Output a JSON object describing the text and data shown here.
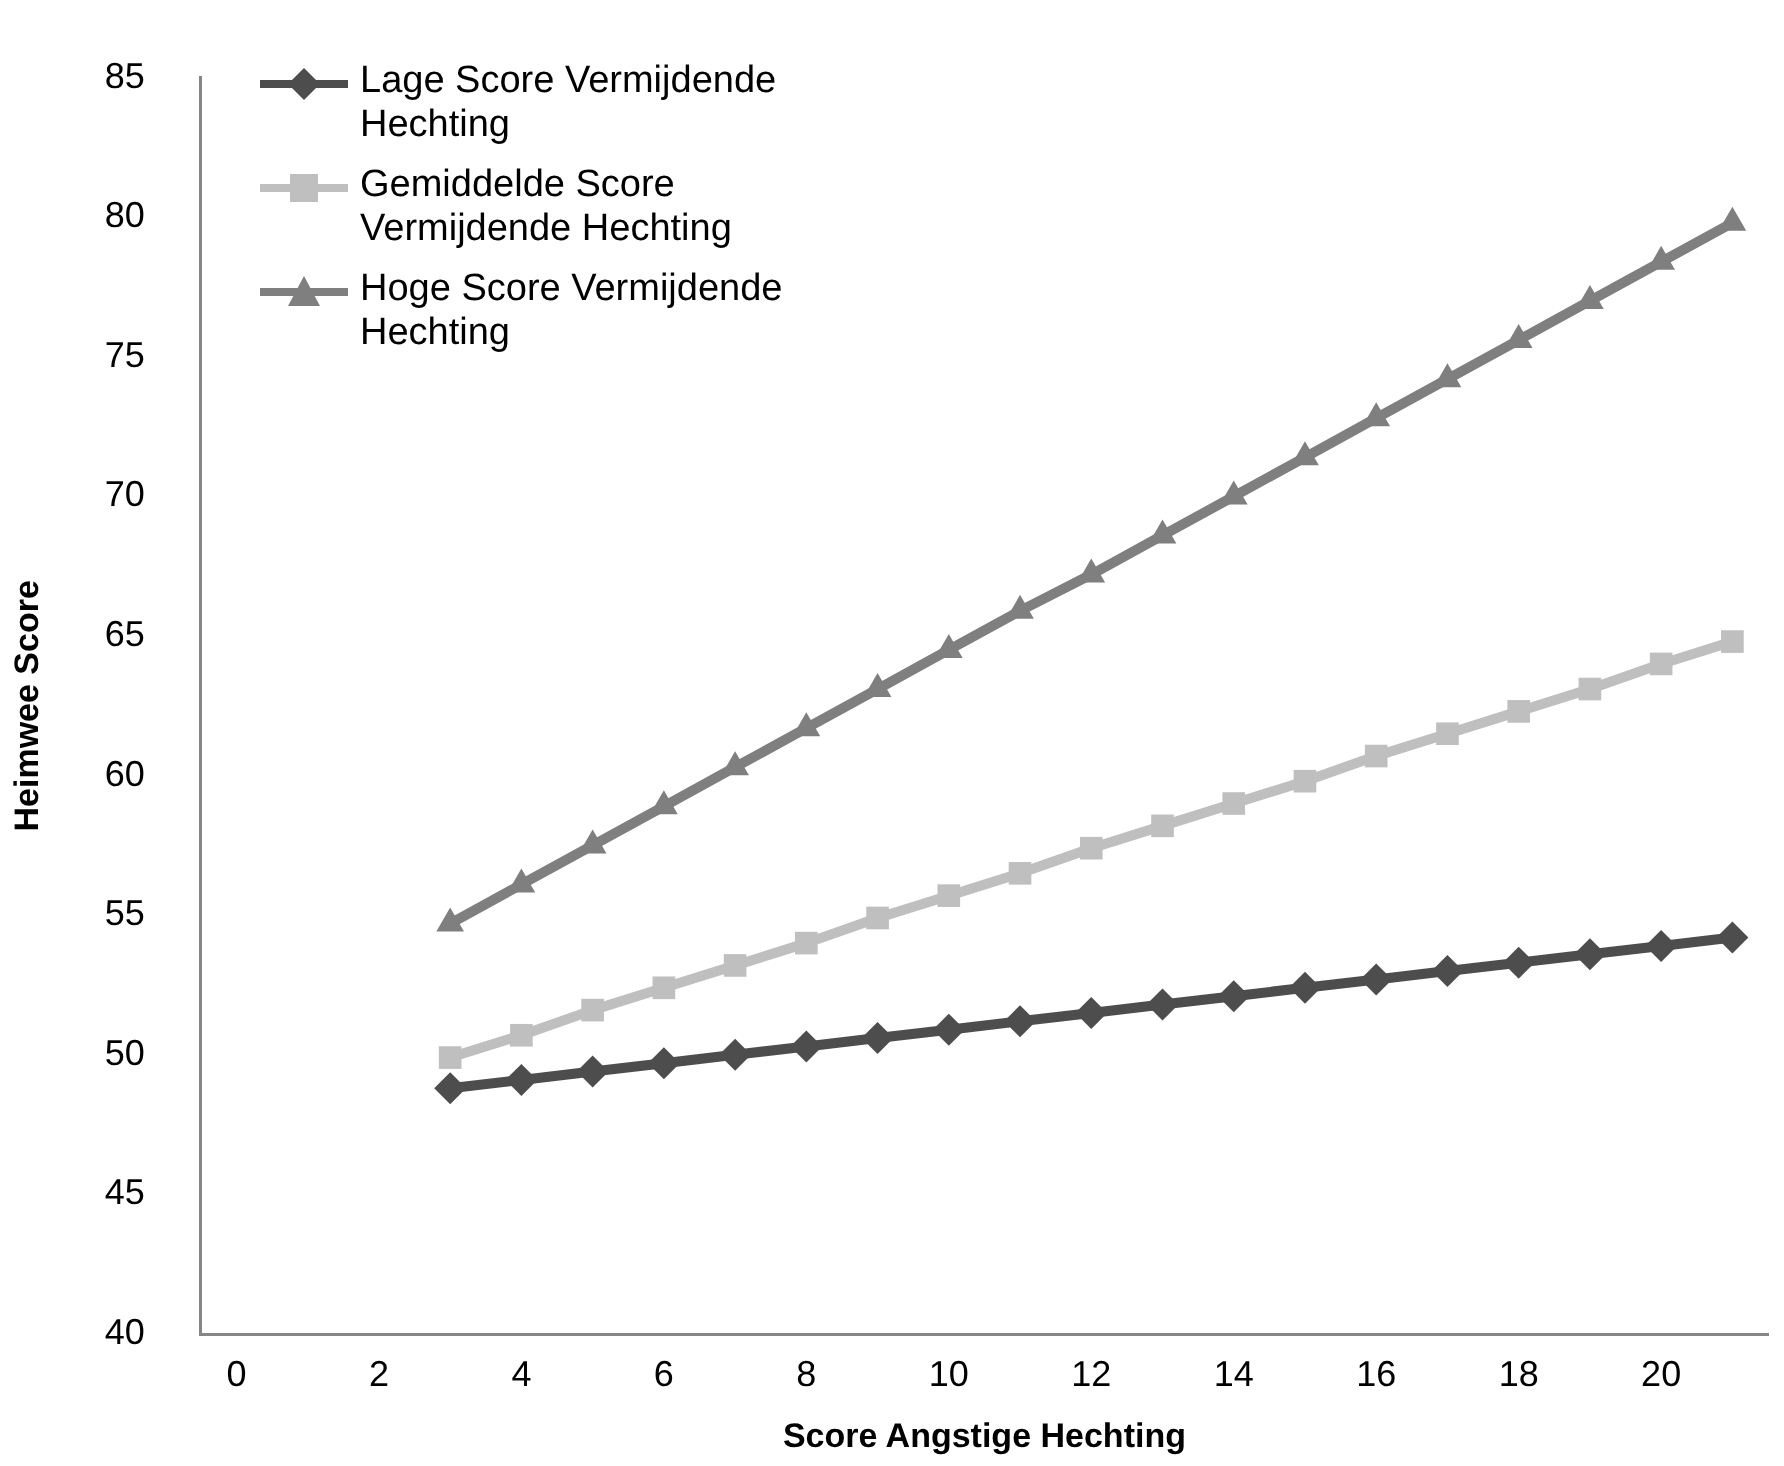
{
  "chart_data": {
    "type": "line",
    "xlabel": "Score Angstige Hechting",
    "ylabel": "Heimwee Score",
    "x": [
      3,
      4,
      5,
      6,
      7,
      8,
      9,
      10,
      11,
      12,
      13,
      14,
      15,
      16,
      17,
      18,
      19,
      20,
      21
    ],
    "xlim": [
      -0.5,
      21.5
    ],
    "xticks": [
      0,
      2,
      4,
      6,
      8,
      10,
      12,
      14,
      16,
      18,
      20
    ],
    "ylim": [
      40,
      85
    ],
    "yticks": [
      40,
      45,
      50,
      55,
      60,
      65,
      70,
      75,
      80,
      85
    ],
    "grid": false,
    "legend": "top left",
    "series": [
      {
        "name": "Lage Score Vermijdende Hechting",
        "color": "#4d4d4d",
        "marker": "diamond",
        "values": [
          48.8,
          49.1,
          49.4,
          49.7,
          50.0,
          50.3,
          50.6,
          50.9,
          51.2,
          51.5,
          51.8,
          52.1,
          52.4,
          52.7,
          53.0,
          53.3,
          53.6,
          53.9,
          54.2
        ]
      },
      {
        "name": "Gemiddelde Score Vermijdende Hechting",
        "color": "#bfbfbf",
        "marker": "square",
        "values": [
          49.9,
          50.7,
          51.6,
          52.4,
          53.2,
          54.0,
          54.9,
          55.7,
          56.5,
          57.4,
          58.2,
          59.0,
          59.8,
          60.7,
          61.5,
          62.3,
          63.1,
          64.0,
          64.8
        ]
      },
      {
        "name": "Hoge Score Vermijdende Hechting",
        "color": "#7f7f7f",
        "marker": "triangle",
        "values": [
          54.7,
          56.1,
          57.5,
          58.9,
          60.3,
          61.7,
          63.1,
          64.5,
          65.9,
          67.2,
          68.6,
          70.0,
          71.4,
          72.8,
          74.2,
          75.6,
          77.0,
          78.4,
          79.8
        ]
      }
    ]
  }
}
